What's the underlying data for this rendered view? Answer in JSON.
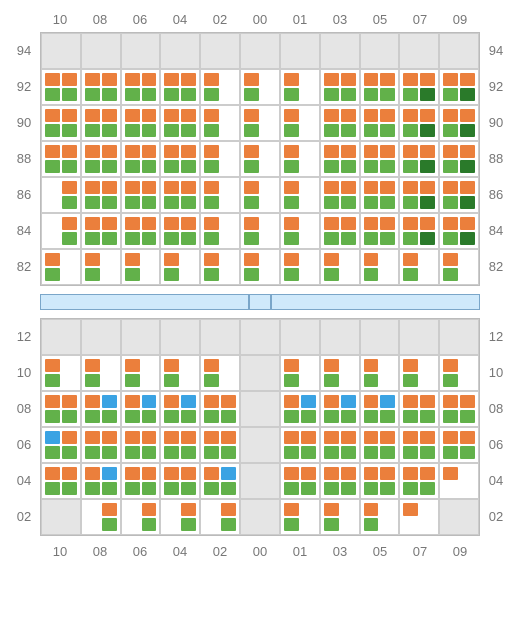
{
  "colors": {
    "orange": "#eb7f3c",
    "green": "#62b14a",
    "darkgreen": "#2a7a2a",
    "blue": "#3aa3e3",
    "grey": "#e5e5e5",
    "border": "#cccccc",
    "label": "#777777"
  },
  "column_labels": [
    "10",
    "08",
    "06",
    "04",
    "02",
    "00",
    "01",
    "03",
    "05",
    "07",
    "09"
  ],
  "top_rows": [
    "94",
    "92",
    "90",
    "88",
    "86",
    "84",
    "82"
  ],
  "bottom_rows": [
    "12",
    "10",
    "08",
    "06",
    "04",
    "02"
  ],
  "top_section": [
    [
      "E",
      "E",
      "E",
      "E",
      "E",
      "E",
      "E",
      "E",
      "E",
      "E",
      "E"
    ],
    [
      [
        "o",
        "o",
        "g",
        "g"
      ],
      [
        "o",
        "o",
        "g",
        "g"
      ],
      [
        "o",
        "o",
        "g",
        "g"
      ],
      [
        "o",
        "o",
        "g",
        "g"
      ],
      [
        "o",
        "",
        "g",
        ""
      ],
      [
        "o",
        "",
        "g",
        ""
      ],
      [
        "o",
        "",
        "g",
        ""
      ],
      [
        "o",
        "o",
        "g",
        "g"
      ],
      [
        "o",
        "o",
        "g",
        "g"
      ],
      [
        "o",
        "o",
        "g",
        "d"
      ],
      [
        "o",
        "o",
        "g",
        "d"
      ]
    ],
    [
      [
        "o",
        "o",
        "g",
        "g"
      ],
      [
        "o",
        "o",
        "g",
        "g"
      ],
      [
        "o",
        "o",
        "g",
        "g"
      ],
      [
        "o",
        "o",
        "g",
        "g"
      ],
      [
        "o",
        "",
        "g",
        ""
      ],
      [
        "o",
        "",
        "g",
        ""
      ],
      [
        "o",
        "",
        "g",
        ""
      ],
      [
        "o",
        "o",
        "g",
        "g"
      ],
      [
        "o",
        "o",
        "g",
        "g"
      ],
      [
        "o",
        "o",
        "g",
        "d"
      ],
      [
        "o",
        "o",
        "g",
        "d"
      ]
    ],
    [
      [
        "o",
        "o",
        "g",
        "g"
      ],
      [
        "o",
        "o",
        "g",
        "g"
      ],
      [
        "o",
        "o",
        "g",
        "g"
      ],
      [
        "o",
        "o",
        "g",
        "g"
      ],
      [
        "o",
        "",
        "g",
        ""
      ],
      [
        "o",
        "",
        "g",
        ""
      ],
      [
        "o",
        "",
        "g",
        ""
      ],
      [
        "o",
        "o",
        "g",
        "g"
      ],
      [
        "o",
        "o",
        "g",
        "g"
      ],
      [
        "o",
        "o",
        "g",
        "d"
      ],
      [
        "o",
        "o",
        "g",
        "d"
      ]
    ],
    [
      [
        "",
        "o",
        "",
        "g"
      ],
      [
        "o",
        "o",
        "g",
        "g"
      ],
      [
        "o",
        "o",
        "g",
        "g"
      ],
      [
        "o",
        "o",
        "g",
        "g"
      ],
      [
        "o",
        "",
        "g",
        ""
      ],
      [
        "o",
        "",
        "g",
        ""
      ],
      [
        "o",
        "",
        "g",
        ""
      ],
      [
        "o",
        "o",
        "g",
        "g"
      ],
      [
        "o",
        "o",
        "g",
        "g"
      ],
      [
        "o",
        "o",
        "g",
        "d"
      ],
      [
        "o",
        "o",
        "g",
        "d"
      ]
    ],
    [
      [
        "",
        "o",
        "",
        "g"
      ],
      [
        "o",
        "o",
        "g",
        "g"
      ],
      [
        "o",
        "o",
        "g",
        "g"
      ],
      [
        "o",
        "o",
        "g",
        "g"
      ],
      [
        "o",
        "",
        "g",
        ""
      ],
      [
        "o",
        "",
        "g",
        ""
      ],
      [
        "o",
        "",
        "g",
        ""
      ],
      [
        "o",
        "o",
        "g",
        "g"
      ],
      [
        "o",
        "o",
        "g",
        "g"
      ],
      [
        "o",
        "o",
        "g",
        "d"
      ],
      [
        "o",
        "o",
        "g",
        "d"
      ]
    ],
    [
      [
        "o",
        "",
        "g",
        ""
      ],
      [
        "o",
        "",
        "g",
        ""
      ],
      [
        "o",
        "",
        "g",
        ""
      ],
      [
        "o",
        "",
        "g",
        ""
      ],
      [
        "o",
        "",
        "g",
        ""
      ],
      [
        "o",
        "",
        "g",
        ""
      ],
      [
        "o",
        "",
        "g",
        ""
      ],
      [
        "o",
        "",
        "g",
        ""
      ],
      [
        "o",
        "",
        "g",
        ""
      ],
      [
        "o",
        "",
        "g",
        ""
      ],
      [
        "o",
        "",
        "g",
        ""
      ]
    ]
  ],
  "bottom_section": [
    [
      "E",
      "E",
      "E",
      "E",
      "E",
      "E",
      "E",
      "E",
      "E",
      "E",
      "E"
    ],
    [
      [
        "o",
        "",
        "g",
        ""
      ],
      [
        "o",
        "",
        "g",
        ""
      ],
      [
        "o",
        "",
        "g",
        ""
      ],
      [
        "o",
        "",
        "g",
        ""
      ],
      [
        "o",
        "",
        "g",
        ""
      ],
      "E",
      [
        "o",
        "",
        "g",
        ""
      ],
      [
        "o",
        "",
        "g",
        ""
      ],
      [
        "o",
        "",
        "g",
        ""
      ],
      [
        "o",
        "",
        "g",
        ""
      ],
      [
        "o",
        "",
        "g",
        ""
      ]
    ],
    [
      [
        "o",
        "o",
        "g",
        "g"
      ],
      [
        "o",
        "b",
        "g",
        "g"
      ],
      [
        "o",
        "b",
        "g",
        "g"
      ],
      [
        "o",
        "b",
        "g",
        "g"
      ],
      [
        "o",
        "o",
        "g",
        "g"
      ],
      "E",
      [
        "o",
        "b",
        "g",
        "g"
      ],
      [
        "o",
        "b",
        "g",
        "g"
      ],
      [
        "o",
        "b",
        "g",
        "g"
      ],
      [
        "o",
        "o",
        "g",
        "g"
      ],
      [
        "o",
        "o",
        "g",
        "g"
      ]
    ],
    [
      [
        "b",
        "o",
        "g",
        "g"
      ],
      [
        "o",
        "o",
        "g",
        "g"
      ],
      [
        "o",
        "o",
        "g",
        "g"
      ],
      [
        "o",
        "o",
        "g",
        "g"
      ],
      [
        "o",
        "o",
        "g",
        "g"
      ],
      "E",
      [
        "o",
        "o",
        "g",
        "g"
      ],
      [
        "o",
        "o",
        "g",
        "g"
      ],
      [
        "o",
        "o",
        "g",
        "g"
      ],
      [
        "o",
        "o",
        "g",
        "g"
      ],
      [
        "o",
        "o",
        "g",
        "g"
      ]
    ],
    [
      [
        "o",
        "o",
        "g",
        "g"
      ],
      [
        "o",
        "b",
        "g",
        "g"
      ],
      [
        "o",
        "o",
        "g",
        "g"
      ],
      [
        "o",
        "o",
        "g",
        "g"
      ],
      [
        "o",
        "b",
        "g",
        "g"
      ],
      "E",
      [
        "o",
        "o",
        "g",
        "g"
      ],
      [
        "o",
        "o",
        "g",
        "g"
      ],
      [
        "o",
        "o",
        "g",
        "g"
      ],
      [
        "o",
        "o",
        "g",
        "g"
      ],
      [
        "o",
        "",
        "",
        ""
      ]
    ],
    [
      "E",
      [
        "",
        "o",
        "",
        "g"
      ],
      [
        "",
        "o",
        "",
        "g"
      ],
      [
        "",
        "o",
        "",
        "g"
      ],
      [
        "",
        "o",
        "",
        "g"
      ],
      "E",
      [
        "o",
        "",
        "g",
        ""
      ],
      [
        "o",
        "",
        "g",
        ""
      ],
      [
        "o",
        "",
        "g",
        ""
      ],
      [
        "o",
        "",
        "",
        ""
      ],
      "E"
    ]
  ]
}
